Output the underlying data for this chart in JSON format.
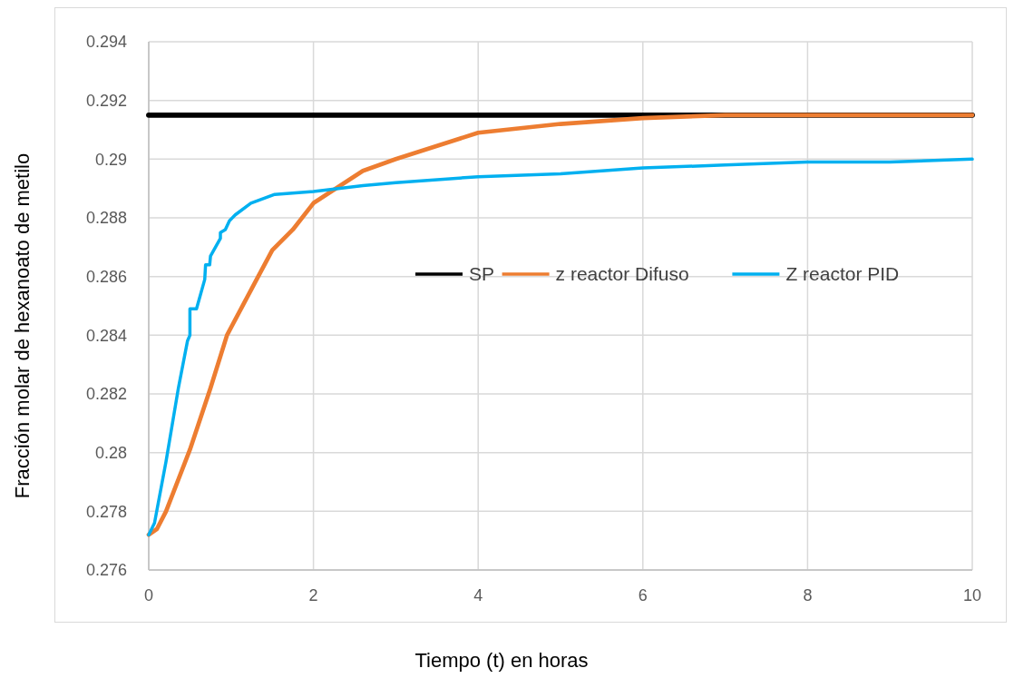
{
  "chart_data": {
    "type": "line",
    "xlabel": "Tiempo (t) en horas",
    "ylabel": "Fracción molar de hexanoato de metilo",
    "xlim": [
      0,
      10
    ],
    "xticks": [
      0,
      2,
      4,
      6,
      8,
      10
    ],
    "ylim": [
      0.276,
      0.294
    ],
    "yticks": [
      0.276,
      0.278,
      0.28,
      0.282,
      0.284,
      0.286,
      0.288,
      0.29,
      0.292,
      0.294
    ],
    "grid": true,
    "legend": "right",
    "line_style": "solid",
    "marker": "none",
    "series": [
      {
        "name": "SP",
        "color": "#000000",
        "x": [
          0,
          10
        ],
        "values": [
          0.2915,
          0.2915
        ]
      },
      {
        "name": "z reactor Difuso",
        "color": "#ed7d31",
        "x": [
          0,
          0.1,
          0.21,
          0.5,
          0.75,
          0.95,
          1.31,
          1.5,
          1.75,
          2,
          2.6,
          3,
          4,
          5,
          6,
          7,
          8,
          9,
          10
        ],
        "values": [
          0.2772,
          0.2774,
          0.278,
          0.2801,
          0.2822,
          0.284,
          0.2859,
          0.2869,
          0.2876,
          0.2885,
          0.2896,
          0.29,
          0.2909,
          0.2912,
          0.2914,
          0.2915,
          0.2915,
          0.2915,
          0.2915
        ]
      },
      {
        "name": "Z reactor PID",
        "color": "#00b0f0",
        "x": [
          0,
          0.07,
          0.21,
          0.36,
          0.47,
          0.5,
          0.5,
          0.58,
          0.68,
          0.69,
          0.74,
          0.75,
          0.87,
          0.87,
          0.93,
          0.98,
          1.05,
          1.24,
          1.53,
          2,
          2.6,
          3,
          4,
          5,
          6,
          7,
          8,
          9,
          10
        ],
        "values": [
          0.2772,
          0.2776,
          0.2797,
          0.2822,
          0.2838,
          0.284,
          0.2849,
          0.2849,
          0.2859,
          0.2864,
          0.2864,
          0.2867,
          0.2873,
          0.2875,
          0.2876,
          0.2879,
          0.2881,
          0.2885,
          0.2888,
          0.2889,
          0.2891,
          0.2892,
          0.2894,
          0.2895,
          0.2897,
          0.2898,
          0.2899,
          0.2899,
          0.29
        ]
      }
    ]
  }
}
